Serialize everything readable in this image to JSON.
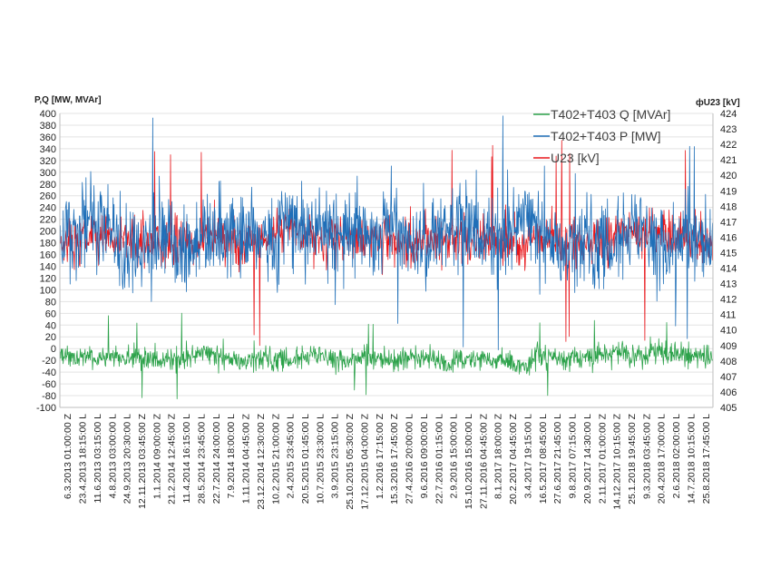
{
  "chart_data": {
    "type": "line",
    "title": "",
    "y_left": {
      "label": "P,Q [MW, MVAr]",
      "min": -100,
      "max": 400,
      "step": 20,
      "tick_labels": [
        "400",
        "380",
        "360",
        "340",
        "320",
        "300",
        "280",
        "260",
        "240",
        "220",
        "200",
        "180",
        "160",
        "140",
        "120",
        "100",
        "80",
        "60",
        "40",
        "20",
        "0",
        "-20",
        "-40",
        "-60",
        "-80",
        "-100"
      ]
    },
    "y_right": {
      "label": "U23 [kV]",
      "min": 405,
      "max": 424,
      "step": 1,
      "tick_labels": [
        "424",
        "423",
        "422",
        "421",
        "420",
        "419",
        "418",
        "417",
        "416",
        "415",
        "414",
        "413",
        "412",
        "411",
        "410",
        "409",
        "408",
        "407",
        "406",
        "405"
      ]
    },
    "x_tick_labels": [
      "6.3.2013 01:00:00 Z",
      "23.4.2013 18:15:00 L",
      "11.6.2013 03:15:00 L",
      "4.8.2013 03:00:00 L",
      "24.9.2013 20:30:00 L",
      "12.11.2013 03:45:00 Z",
      "1.1.2014 09:00:00 Z",
      "21.2.2014 12:45:00 Z",
      "11.4.2014 16:15:00 L",
      "28.5.2014 23:45:00 L",
      "22.7.2014 24:00:00 L",
      "7.9.2014 18:00:00 L",
      "1.11.2014 04:45:00 Z",
      "23.12.2014 12:30:00 Z",
      "10.2.2015 21:00:00 Z",
      "2.4.2015 23:45:00 L",
      "20.5.2015 01:45:00 L",
      "10.7.2015 23:30:00 L",
      "3.9.2015 23:15:00 L",
      "25.10.2015 05:30:00 Z",
      "17.12.2015 04:00:00 Z",
      "1.2.2016 17:15:00 Z",
      "15.3.2016 17:45:00 Z",
      "27.4.2016 20:00:00 L",
      "9.6.2016 09:00:00 L",
      "22.7.2016 01:15:00 L",
      "2.9.2016 15:00:00 L",
      "15.10.2016 15:00:00 L",
      "27.11.2016 04:45:00 Z",
      "8.1.2017 18:00:00 Z",
      "20.2.2017 04:45:00 Z",
      "3.4.2017 19:15:00 L",
      "16.5.2017 08:45:00 L",
      "27.6.2017 21:45:00 L",
      "9.8.2017 07:15:00 L",
      "20.9.2017 14:30:00 L",
      "2.11.2017 01:00:00 Z",
      "14.12.2017 10:15:00 Z",
      "25.1.2018 19:45:00 Z",
      "9.3.2018 03:45:00 Z",
      "20.4.2018 17:00:00 L",
      "2.6.2018 02:00:00 L",
      "14.7.2018 10:15:00 L",
      "25.8.2018 17:45:00 L"
    ],
    "series": [
      {
        "name": "T402+T403 Q [MVAr]",
        "color": "#2ca24a",
        "axis": "left",
        "center": -15,
        "spread": 12,
        "min": -88,
        "max": 62
      },
      {
        "name": "T402+T403 P [MW]",
        "color": "#1f6fb8",
        "axis": "left",
        "center": 190,
        "spread": 45,
        "min": -20,
        "max": 400
      },
      {
        "name": "U23 [kV]",
        "color": "#e8161b",
        "axis": "right",
        "center": 415.7,
        "spread": 0.9,
        "min": 408,
        "max": 423
      }
    ],
    "legend_position": "top-right"
  }
}
